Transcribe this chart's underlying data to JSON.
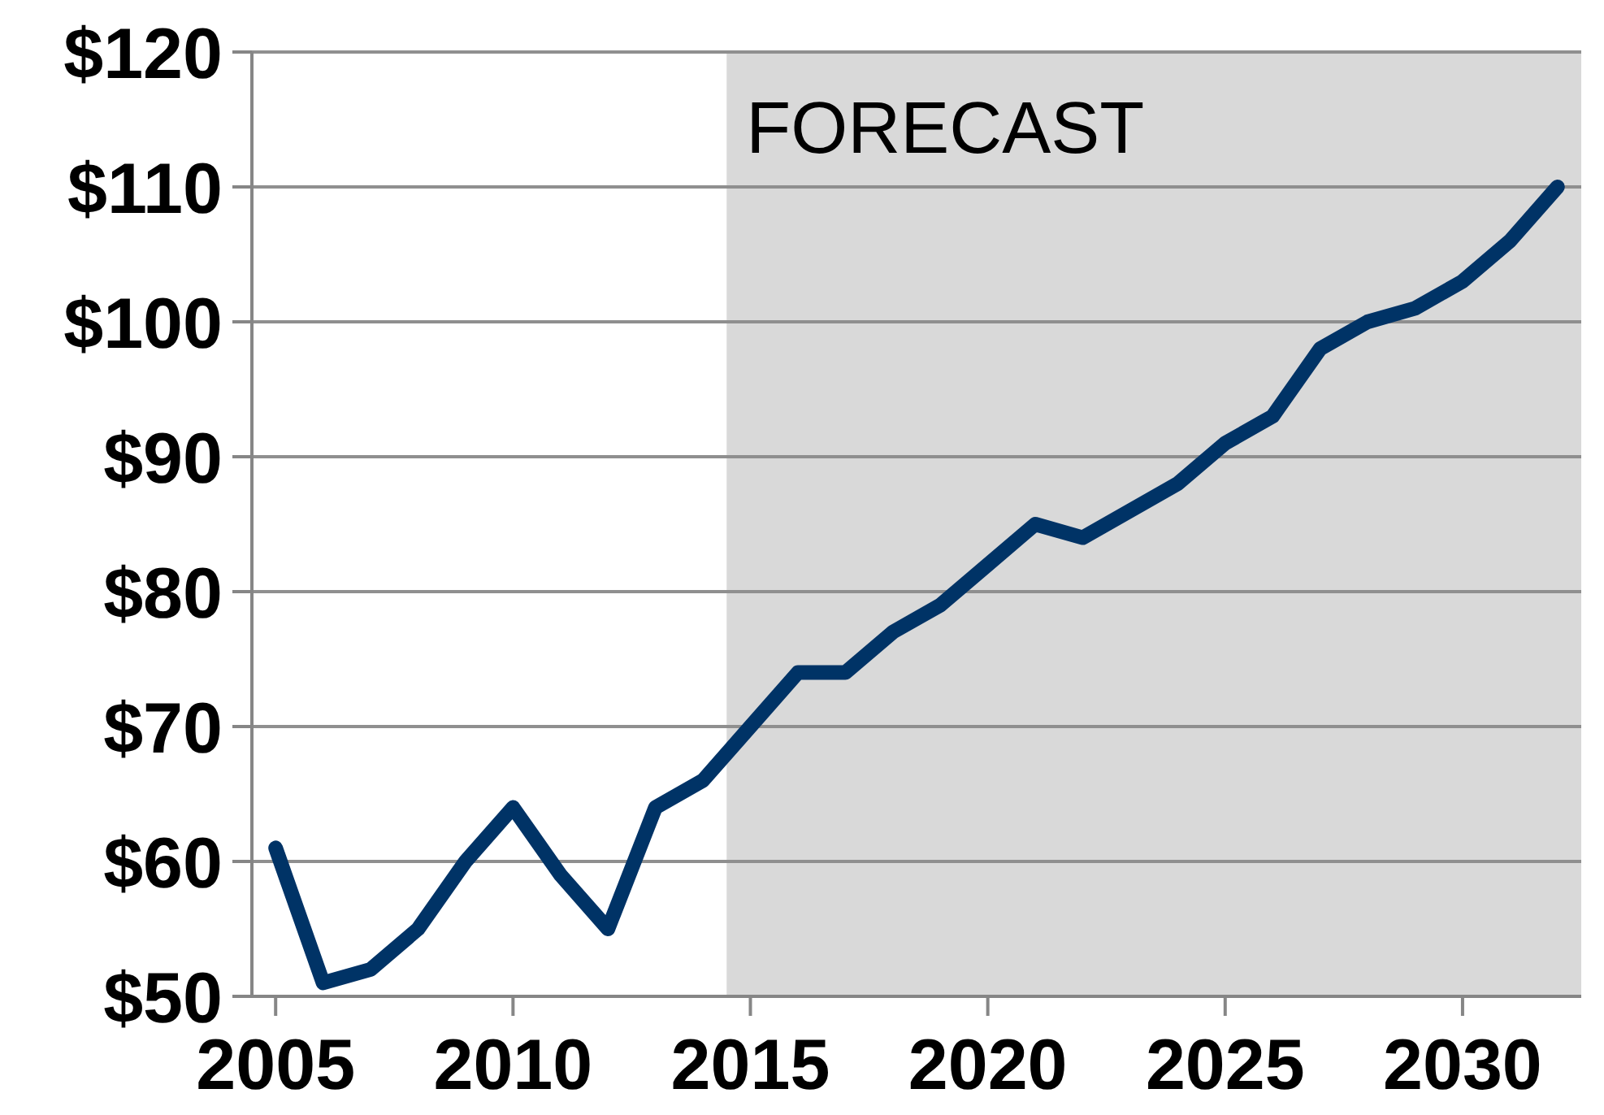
{
  "chart_data": {
    "type": "line",
    "x": [
      2005,
      2006,
      2007,
      2008,
      2009,
      2010,
      2011,
      2012,
      2013,
      2014,
      2015,
      2016,
      2017,
      2018,
      2019,
      2020,
      2021,
      2022,
      2023,
      2024,
      2025,
      2026,
      2027,
      2028,
      2029,
      2030,
      2031,
      2032
    ],
    "series": [
      {
        "color": "#003366",
        "values": [
          61,
          51,
          52,
          55,
          60,
          64,
          59,
          55,
          64,
          66,
          70,
          74,
          74,
          77,
          79,
          82,
          85,
          84,
          86,
          88,
          91,
          93,
          98,
          100,
          101,
          103,
          106,
          110
        ]
      }
    ],
    "xlim": [
      2004.5,
      2032.5
    ],
    "xticks": [
      2005,
      2010,
      2015,
      2020,
      2025,
      2030
    ],
    "ylim": [
      50,
      120
    ],
    "yticks": [
      {
        "value": 50,
        "label": "$50"
      },
      {
        "value": 60,
        "label": "$60"
      },
      {
        "value": 70,
        "label": "$70"
      },
      {
        "value": 80,
        "label": "$80"
      },
      {
        "value": 90,
        "label": "$90"
      },
      {
        "value": 100,
        "label": "$100"
      },
      {
        "value": 110,
        "label": "$110"
      },
      {
        "value": 120,
        "label": "$120"
      }
    ],
    "grid": "y",
    "bands": [
      {
        "axis": "x",
        "from": 2014.5,
        "to": 2032.5,
        "label": "FORECAST",
        "color": "#d9d9d9"
      }
    ]
  }
}
